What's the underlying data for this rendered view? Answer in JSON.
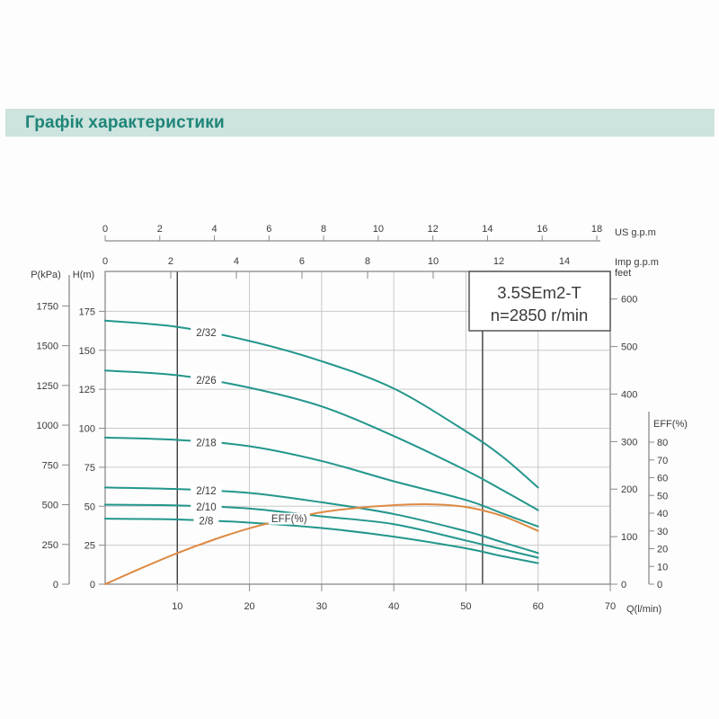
{
  "header": {
    "title": "Графік характеристики"
  },
  "chart_data": {
    "type": "line",
    "model": "3.5SEm2-T",
    "speed": "n=2850 r/min",
    "axes": {
      "us_gpm": {
        "label": "US g.p.m",
        "ticks": [
          0,
          2,
          4,
          6,
          8,
          10,
          12,
          14,
          16,
          18
        ]
      },
      "imp_gpm": {
        "label": "Imp g.p.m",
        "ticks": [
          0,
          2,
          4,
          6,
          8,
          10,
          12,
          14
        ]
      },
      "pressure_kpa": {
        "label": "P(kPa)",
        "ticks": [
          0,
          250,
          500,
          750,
          1000,
          1250,
          1500,
          1750
        ]
      },
      "head_m": {
        "label": "H(m)",
        "ticks": [
          0,
          25,
          50,
          75,
          100,
          125,
          150,
          175
        ]
      },
      "head_feet": {
        "label": "feet",
        "ticks": [
          0,
          100,
          200,
          300,
          400,
          500,
          600
        ]
      },
      "efficiency": {
        "label": "EFF(%)",
        "ticks": [
          0,
          10,
          20,
          30,
          40,
          50,
          60,
          70,
          80
        ]
      },
      "flow_lpm": {
        "label": "Q(l/min)",
        "ticks": [
          10,
          20,
          30,
          40,
          50,
          60,
          70
        ],
        "max": 70
      },
      "grid_h_m": [
        25,
        50,
        75,
        100,
        125,
        150,
        175
      ],
      "grid_v_lpm": [
        10,
        20,
        30,
        40,
        50,
        60
      ]
    },
    "head_curves": [
      {
        "name": "2/32",
        "q_lpm": [
          0,
          10,
          20,
          30,
          40,
          50,
          55,
          60
        ],
        "h_m": [
          169,
          165,
          156,
          143,
          125.5,
          98,
          82,
          62
        ]
      },
      {
        "name": "2/26",
        "q_lpm": [
          0,
          10,
          20,
          30,
          40,
          50,
          55,
          60
        ],
        "h_m": [
          137,
          134,
          126,
          114,
          95,
          73,
          60.5,
          47.5
        ]
      },
      {
        "name": "2/18",
        "q_lpm": [
          0,
          10,
          20,
          30,
          40,
          50,
          55,
          60
        ],
        "h_m": [
          94,
          92.5,
          88.5,
          79,
          66,
          54,
          45.5,
          37
        ]
      },
      {
        "name": "2/12",
        "q_lpm": [
          0,
          10,
          20,
          30,
          40,
          50,
          55,
          60
        ],
        "h_m": [
          62,
          61,
          58.5,
          52.5,
          45,
          34,
          27,
          20
        ]
      },
      {
        "name": "2/10",
        "q_lpm": [
          0,
          10,
          20,
          30,
          40,
          50,
          55,
          60
        ],
        "h_m": [
          51,
          50.5,
          48.5,
          43.5,
          38.5,
          28,
          22.5,
          17
        ]
      },
      {
        "name": "2/8",
        "q_lpm": [
          0,
          10,
          20,
          30,
          40,
          50,
          55,
          60
        ],
        "h_m": [
          42,
          41.5,
          39.5,
          36,
          30.5,
          23,
          18,
          13.5
        ]
      }
    ],
    "efficiency_curve": {
      "name": "EFF(%)",
      "q_lpm": [
        0,
        5,
        10,
        15,
        20,
        25,
        30,
        35,
        40,
        45,
        50,
        55,
        60
      ],
      "eff_pct": [
        0,
        9,
        17.5,
        25,
        31.5,
        36.5,
        40.5,
        43,
        44.5,
        45,
        43.5,
        38.5,
        30
      ]
    },
    "operating_range_lpm": [
      10,
      52.3
    ],
    "colors": {
      "head_curve": "#23968c",
      "efficiency_curve": "#dd8a42",
      "grid": "#c9c9c9",
      "axis": "#8a8a8a",
      "range_line": "#3d3d3d",
      "text": "#3a3a3a",
      "header_bg": "#cde3de",
      "header_text": "#1e8578"
    }
  }
}
